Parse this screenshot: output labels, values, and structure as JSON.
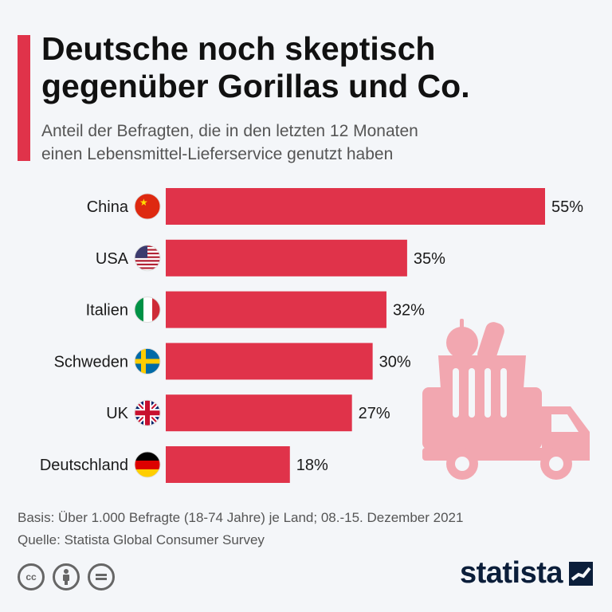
{
  "header": {
    "title_line1": "Deutsche noch skeptisch",
    "title_line2": "gegenüber Gorillas und Co.",
    "subtitle_line1": "Anteil der Befragten, die in den letzten 12 Monaten",
    "subtitle_line2": "einen Lebensmittel-Lieferservice genutzt haben"
  },
  "chart_data": {
    "type": "bar",
    "orientation": "horizontal",
    "categories": [
      "China",
      "USA",
      "Italien",
      "Schweden",
      "UK",
      "Deutschland"
    ],
    "values": [
      55,
      35,
      32,
      30,
      27,
      18
    ],
    "value_labels": [
      "55%",
      "35%",
      "32%",
      "30%",
      "27%",
      "18%"
    ],
    "unit": "%",
    "bar_color": "#e0334a",
    "flag_icons": [
      "china-flag-icon",
      "usa-flag-icon",
      "italy-flag-icon",
      "sweden-flag-icon",
      "uk-flag-icon",
      "germany-flag-icon"
    ]
  },
  "footer": {
    "basis": "Basis: Über 1.000 Befragte (18-74 Jahre) je Land; 08.-15. Dezember 2021",
    "source": "Quelle: Statista Global Consumer Survey"
  },
  "license_icons": [
    "cc-icon",
    "attribution-icon",
    "no-derivatives-icon"
  ],
  "brand": {
    "name": "statista"
  },
  "colors": {
    "accent": "#e0334a",
    "illustration": "#f2a7b0",
    "brand": "#0b1e3a"
  }
}
